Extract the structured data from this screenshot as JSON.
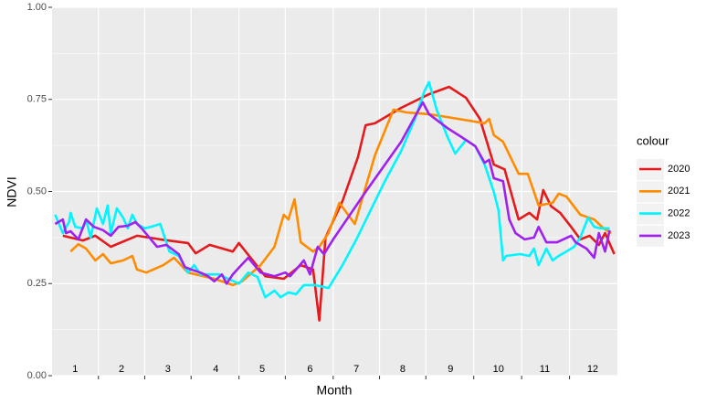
{
  "chart_data": {
    "type": "line",
    "x_label": "Month",
    "y_label": "NDVI",
    "legend_title": "colour",
    "legend_position": "right",
    "grid": true,
    "xlim": [
      0,
      366
    ],
    "ylim": [
      0,
      1
    ],
    "xticks": [
      30,
      60,
      90,
      121,
      151,
      182,
      212,
      242,
      273,
      304,
      335
    ],
    "yticks": [
      {
        "value": 0,
        "label": "0.00"
      },
      {
        "value": 0.25,
        "label": "0.25"
      },
      {
        "value": 0.5,
        "label": "0.50"
      },
      {
        "value": 0.75,
        "label": "0.75"
      },
      {
        "value": 1,
        "label": "1.00"
      }
    ],
    "y_minor_grid": [
      0.125,
      0.375,
      0.625,
      0.875
    ],
    "annotations": [
      {
        "text": "1",
        "x": 15
      },
      {
        "text": "2",
        "x": 45
      },
      {
        "text": "3",
        "x": 75
      },
      {
        "text": "4",
        "x": 106
      },
      {
        "text": "5",
        "x": 136
      },
      {
        "text": "6",
        "x": 167
      },
      {
        "text": "7",
        "x": 197
      },
      {
        "text": "8",
        "x": 227
      },
      {
        "text": "9",
        "x": 258
      },
      {
        "text": "10",
        "x": 289
      },
      {
        "text": "11",
        "x": 319
      },
      {
        "text": "12",
        "x": 350
      }
    ],
    "series": [
      {
        "name": "2020",
        "color": "#e41a1c",
        "x": [
          7,
          20,
          28,
          38,
          55,
          70,
          88,
          93,
          102,
          117,
          121,
          138,
          150,
          161,
          169,
          173,
          177,
          188,
          198,
          203,
          209,
          226,
          244,
          257,
          268,
          277,
          286,
          293,
          302,
          309,
          314,
          318,
          323,
          329,
          336,
          342,
          348,
          354,
          358,
          364
        ],
        "values": [
          0.38,
          0.367,
          0.38,
          0.35,
          0.38,
          0.37,
          0.36,
          0.332,
          0.355,
          0.337,
          0.36,
          0.27,
          0.263,
          0.3,
          0.288,
          0.15,
          0.375,
          0.474,
          0.593,
          0.68,
          0.685,
          0.727,
          0.764,
          0.784,
          0.754,
          0.697,
          0.573,
          0.56,
          0.424,
          0.442,
          0.424,
          0.504,
          0.46,
          0.442,
          0.404,
          0.37,
          0.38,
          0.355,
          0.387,
          0.33
        ]
      },
      {
        "name": "2021",
        "color": "#ff8c00",
        "x": [
          12,
          17,
          22,
          28,
          33,
          38,
          46,
          52,
          55,
          61,
          72,
          79,
          88,
          93,
          105,
          117,
          123,
          135,
          144,
          150,
          153,
          157,
          161,
          169,
          173,
          179,
          186,
          196,
          209,
          221,
          229,
          244,
          256,
          280,
          283,
          286,
          292,
          302,
          308,
          312,
          315,
          324,
          328,
          333,
          342,
          351,
          357,
          362
        ],
        "values": [
          0.337,
          0.357,
          0.345,
          0.313,
          0.33,
          0.305,
          0.313,
          0.325,
          0.288,
          0.28,
          0.3,
          0.32,
          0.28,
          0.275,
          0.263,
          0.246,
          0.256,
          0.3,
          0.35,
          0.437,
          0.424,
          0.479,
          0.362,
          0.337,
          0.35,
          0.387,
          0.469,
          0.412,
          0.598,
          0.722,
          0.715,
          0.71,
          0.702,
          0.685,
          0.697,
          0.653,
          0.635,
          0.548,
          0.548,
          0.499,
          0.462,
          0.469,
          0.494,
          0.486,
          0.437,
          0.424,
          0.4,
          0.387
        ]
      },
      {
        "name": "2022",
        "color": "#00f5ff",
        "x": [
          2,
          7,
          11,
          12,
          15,
          20,
          22,
          25,
          29,
          33,
          36,
          38,
          42,
          46,
          49,
          52,
          55,
          60,
          64,
          70,
          76,
          82,
          88,
          92,
          96,
          102,
          108,
          114,
          121,
          127,
          133,
          138,
          144,
          148,
          153,
          158,
          163,
          170,
          179,
          188,
          197,
          215,
          226,
          235,
          241,
          244,
          249,
          256,
          261,
          268,
          274,
          280,
          286,
          289,
          292,
          294,
          303,
          309,
          312,
          315,
          320,
          324,
          328,
          333,
          338,
          342,
          347,
          351,
          355,
          361
        ],
        "values": [
          0.437,
          0.387,
          0.417,
          0.442,
          0.404,
          0.4,
          0.424,
          0.375,
          0.454,
          0.412,
          0.462,
          0.387,
          0.454,
          0.429,
          0.4,
          0.437,
          0.412,
          0.4,
          0.404,
          0.412,
          0.337,
          0.325,
          0.28,
          0.3,
          0.275,
          0.275,
          0.275,
          0.263,
          0.25,
          0.28,
          0.268,
          0.213,
          0.231,
          0.213,
          0.226,
          0.221,
          0.246,
          0.246,
          0.238,
          0.3,
          0.37,
          0.524,
          0.61,
          0.697,
          0.772,
          0.797,
          0.722,
          0.648,
          0.603,
          0.64,
          0.623,
          0.573,
          0.499,
          0.449,
          0.313,
          0.325,
          0.33,
          0.325,
          0.345,
          0.3,
          0.345,
          0.313,
          0.325,
          0.337,
          0.35,
          0.375,
          0.429,
          0.404,
          0.4,
          0.4
        ]
      },
      {
        "name": "2023",
        "color": "#a020f0",
        "x": [
          2,
          7,
          9,
          12,
          17,
          22,
          27,
          33,
          38,
          43,
          49,
          54,
          58,
          64,
          68,
          74,
          82,
          86,
          90,
          96,
          101,
          105,
          110,
          113,
          117,
          121,
          127,
          135,
          144,
          151,
          154,
          158,
          163,
          167,
          172,
          176,
          182,
          203,
          226,
          240,
          244,
          256,
          265,
          274,
          280,
          283,
          286,
          292,
          296,
          300,
          306,
          312,
          315,
          320,
          327,
          336,
          339,
          346,
          351,
          354,
          358,
          361
        ],
        "values": [
          0.412,
          0.424,
          0.387,
          0.392,
          0.37,
          0.424,
          0.404,
          0.395,
          0.38,
          0.404,
          0.407,
          0.417,
          0.4,
          0.37,
          0.35,
          0.355,
          0.33,
          0.295,
          0.288,
          0.28,
          0.27,
          0.256,
          0.275,
          0.25,
          0.275,
          0.293,
          0.32,
          0.28,
          0.27,
          0.28,
          0.27,
          0.288,
          0.313,
          0.275,
          0.35,
          0.33,
          0.37,
          0.499,
          0.635,
          0.742,
          0.71,
          0.672,
          0.648,
          0.623,
          0.578,
          0.586,
          0.536,
          0.528,
          0.424,
          0.387,
          0.37,
          0.375,
          0.404,
          0.362,
          0.362,
          0.38,
          0.362,
          0.345,
          0.32,
          0.387,
          0.337,
          0.395
        ]
      }
    ]
  }
}
